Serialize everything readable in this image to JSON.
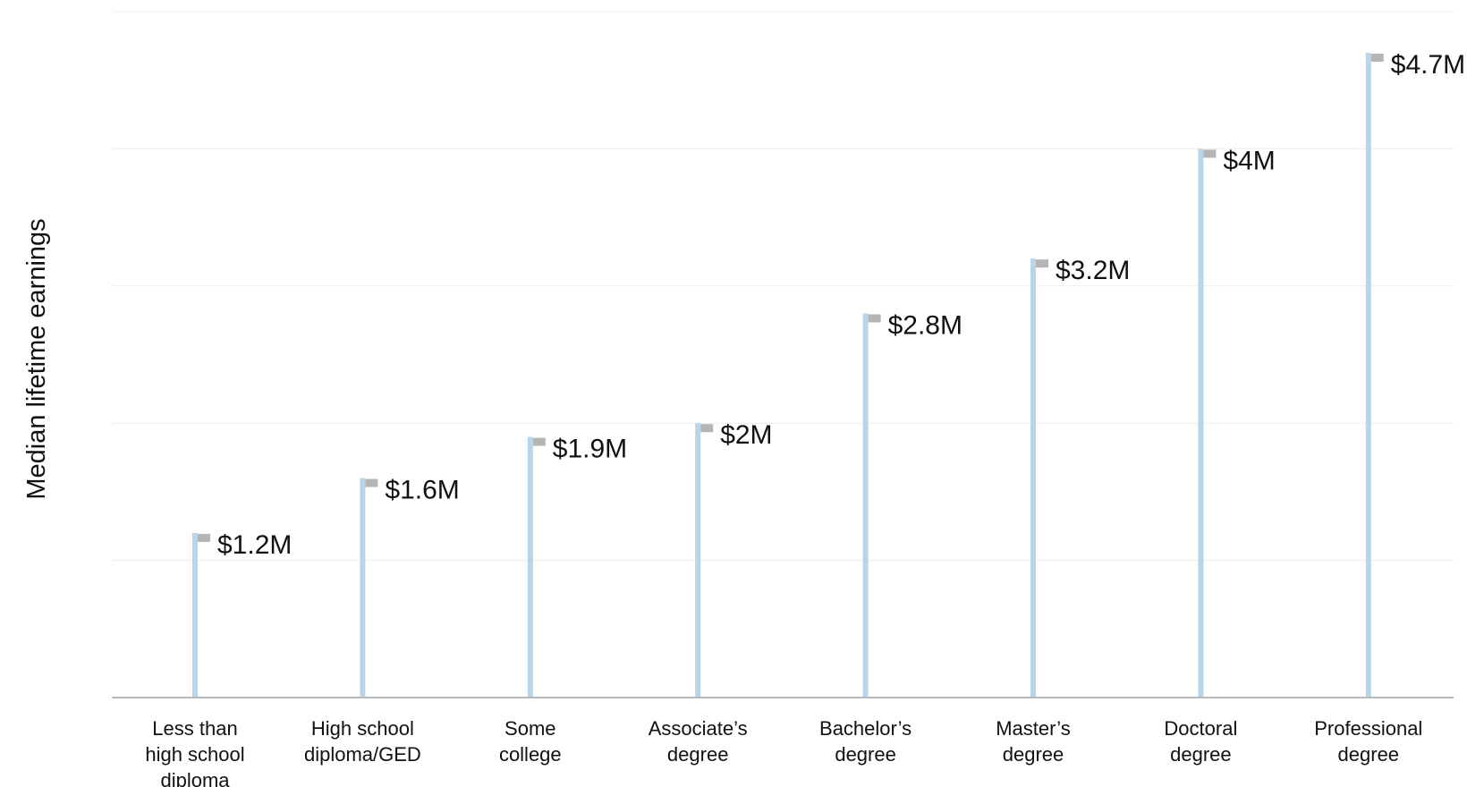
{
  "chart_data": {
    "type": "bar",
    "title": "",
    "xlabel": "",
    "ylabel": "Median lifetime earnings",
    "categories": [
      "Less than\nhigh school\ndiploma",
      "High school\ndiploma/GED",
      "Some\ncollege",
      "Associate’s\ndegree",
      "Bachelor’s\ndegree",
      "Master’s\ndegree",
      "Doctoral\ndegree",
      "Professional\ndegree"
    ],
    "values": [
      1.2,
      1.6,
      1.9,
      2.0,
      2.8,
      3.2,
      4.0,
      4.7
    ],
    "value_labels": [
      "$1.2M",
      "$1.6M",
      "$1.9M",
      "$2M",
      "$2.8M",
      "$3.2M",
      "$4M",
      "$4.7M"
    ],
    "ylim": [
      0,
      5
    ],
    "grid": true,
    "legend": "none",
    "colors": {
      "stem": "#b8d6e8",
      "flag": "#b5b5b5",
      "grid": "#ececec",
      "axis": "#b8b8b8",
      "text": "#111111"
    }
  }
}
